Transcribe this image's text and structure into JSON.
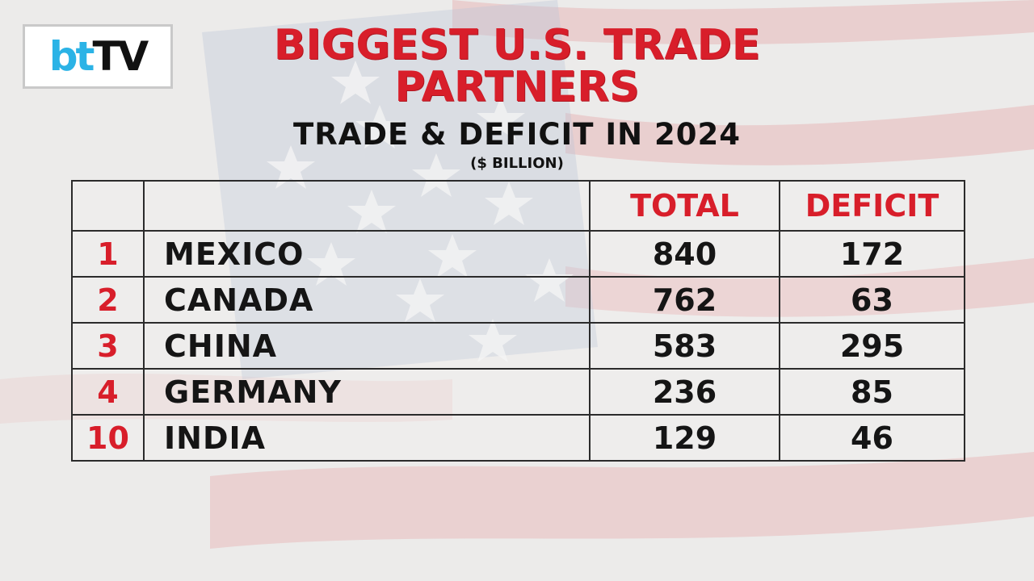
{
  "logo": {
    "bt": "bt",
    "tv": "TV"
  },
  "title_line1": "BIGGEST U.S. TRADE",
  "title_line2": "PARTNERS",
  "subtitle": "TRADE & DEFICIT IN 2024",
  "unit": "($ BILLION)",
  "colors": {
    "accent": "#d81e2a",
    "text": "#151515",
    "logo_blue": "#2bb3e6"
  },
  "chart_data": {
    "type": "table",
    "title": "BIGGEST U.S. TRADE PARTNERS",
    "subtitle": "TRADE & DEFICIT IN 2024",
    "unit": "($ BILLION)",
    "columns": [
      "",
      "",
      "TOTAL",
      "DEFICIT"
    ],
    "rows": [
      {
        "rank": "1",
        "country": "MEXICO",
        "total": "840",
        "deficit": "172"
      },
      {
        "rank": "2",
        "country": "CANADA",
        "total": "762",
        "deficit": "63"
      },
      {
        "rank": "3",
        "country": "CHINA",
        "total": "583",
        "deficit": "295"
      },
      {
        "rank": "4",
        "country": "GERMANY",
        "total": "236",
        "deficit": "85"
      },
      {
        "rank": "10",
        "country": "INDIA",
        "total": "129",
        "deficit": "46"
      }
    ]
  }
}
